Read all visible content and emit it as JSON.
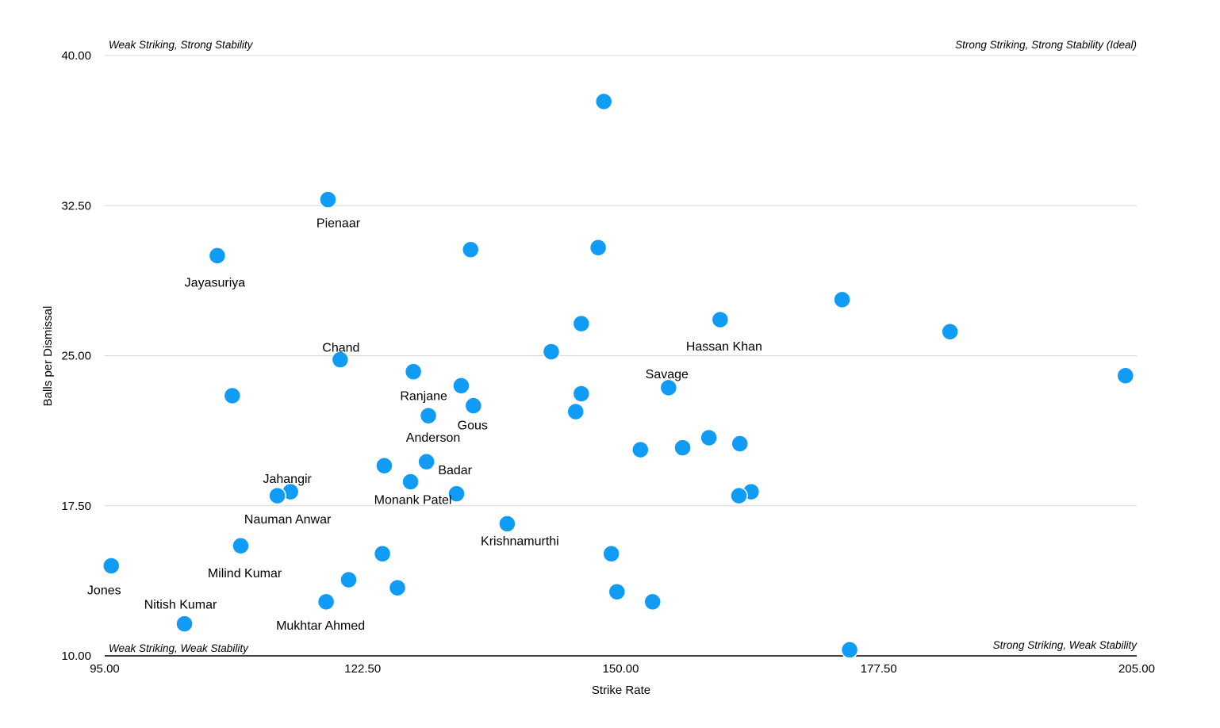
{
  "chart_data": {
    "type": "scatter",
    "xlabel": "Strike Rate",
    "ylabel": "Balls per Dismissal",
    "xlim": [
      95,
      205
    ],
    "ylim": [
      10,
      40
    ],
    "xticks": [
      "95.00",
      "122.50",
      "150.00",
      "177.50",
      "205.00"
    ],
    "yticks": [
      "10.00",
      "17.50",
      "25.00",
      "32.50",
      "40.00"
    ],
    "grid": true,
    "point_color": "#109CF5",
    "quadrants": {
      "top_left": "Weak Striking, Strong Stability",
      "top_right": "Strong Striking, Strong Stability (Ideal)",
      "bottom_left": "Weak Striking, Weak Stability",
      "bottom_right": "Strong Striking, Weak Stability"
    },
    "points": [
      {
        "x": 148.2,
        "y": 37.7,
        "label": ""
      },
      {
        "x": 118.8,
        "y": 32.8,
        "label": "Pienaar"
      },
      {
        "x": 107.0,
        "y": 30.0,
        "label": "Jayasuriya"
      },
      {
        "x": 134.0,
        "y": 30.3,
        "label": ""
      },
      {
        "x": 147.6,
        "y": 30.4,
        "label": ""
      },
      {
        "x": 173.6,
        "y": 27.8,
        "label": ""
      },
      {
        "x": 145.8,
        "y": 26.6,
        "label": ""
      },
      {
        "x": 160.6,
        "y": 26.8,
        "label": "Hassan Khan"
      },
      {
        "x": 185.1,
        "y": 26.2,
        "label": ""
      },
      {
        "x": 120.1,
        "y": 24.8,
        "label": "Chand"
      },
      {
        "x": 142.6,
        "y": 25.2,
        "label": ""
      },
      {
        "x": 203.8,
        "y": 24.0,
        "label": ""
      },
      {
        "x": 108.6,
        "y": 23.0,
        "label": ""
      },
      {
        "x": 127.9,
        "y": 24.2,
        "label": "Ranjane"
      },
      {
        "x": 133.0,
        "y": 23.5,
        "label": ""
      },
      {
        "x": 145.8,
        "y": 23.1,
        "label": ""
      },
      {
        "x": 155.1,
        "y": 23.4,
        "label": "Savage"
      },
      {
        "x": 134.3,
        "y": 22.5,
        "label": "Gous"
      },
      {
        "x": 145.2,
        "y": 22.2,
        "label": ""
      },
      {
        "x": 129.5,
        "y": 22.0,
        "label": "Anderson"
      },
      {
        "x": 159.4,
        "y": 20.9,
        "label": ""
      },
      {
        "x": 162.7,
        "y": 20.6,
        "label": ""
      },
      {
        "x": 152.1,
        "y": 20.3,
        "label": ""
      },
      {
        "x": 156.6,
        "y": 20.4,
        "label": ""
      },
      {
        "x": 129.3,
        "y": 19.7,
        "label": "Badar"
      },
      {
        "x": 124.8,
        "y": 19.5,
        "label": ""
      },
      {
        "x": 127.6,
        "y": 18.7,
        "label": "Monank Patel"
      },
      {
        "x": 132.5,
        "y": 18.1,
        "label": ""
      },
      {
        "x": 114.8,
        "y": 18.2,
        "label": "Jahangir"
      },
      {
        "x": 113.4,
        "y": 18.0,
        "label": "Nauman Anwar"
      },
      {
        "x": 163.9,
        "y": 18.2,
        "label": ""
      },
      {
        "x": 162.6,
        "y": 18.0,
        "label": ""
      },
      {
        "x": 137.9,
        "y": 16.6,
        "label": "Krishnamurthi"
      },
      {
        "x": 109.5,
        "y": 15.5,
        "label": "Milind Kumar"
      },
      {
        "x": 124.6,
        "y": 15.1,
        "label": ""
      },
      {
        "x": 149.0,
        "y": 15.1,
        "label": ""
      },
      {
        "x": 95.7,
        "y": 14.5,
        "label": "Jones"
      },
      {
        "x": 121.0,
        "y": 13.8,
        "label": ""
      },
      {
        "x": 126.2,
        "y": 13.4,
        "label": ""
      },
      {
        "x": 149.6,
        "y": 13.2,
        "label": ""
      },
      {
        "x": 118.6,
        "y": 12.7,
        "label": "Mukhtar Ahmed"
      },
      {
        "x": 153.4,
        "y": 12.7,
        "label": ""
      },
      {
        "x": 103.5,
        "y": 11.6,
        "label": "Nitish Kumar"
      },
      {
        "x": 174.4,
        "y": 10.3,
        "label": ""
      }
    ]
  }
}
